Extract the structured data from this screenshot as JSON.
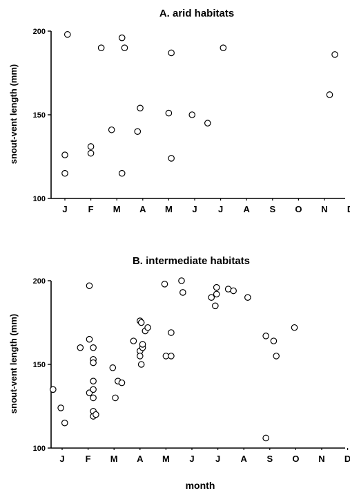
{
  "xlabel": "month",
  "chart_data": [
    {
      "type": "scatter",
      "title": "A.   arid habitats",
      "ylabel": "snout-vent length (mm)",
      "xlabel": "",
      "month_labels": [
        "J",
        "F",
        "M",
        "A",
        "M",
        "J",
        "J",
        "A",
        "S",
        "O",
        "N",
        "D"
      ],
      "ylim": [
        100,
        200
      ],
      "yticks": [
        100,
        150,
        200
      ],
      "grid": false,
      "x_units": "month index (0 = J tick, 11 = D tick)",
      "points": [
        {
          "x": 0.1,
          "y": 198
        },
        {
          "x": 0.0,
          "y": 126
        },
        {
          "x": 0.0,
          "y": 115
        },
        {
          "x": 1.0,
          "y": 131
        },
        {
          "x": 1.0,
          "y": 127
        },
        {
          "x": 1.4,
          "y": 190
        },
        {
          "x": 1.8,
          "y": 141
        },
        {
          "x": 2.2,
          "y": 196
        },
        {
          "x": 2.3,
          "y": 190
        },
        {
          "x": 2.2,
          "y": 115
        },
        {
          "x": 2.8,
          "y": 140
        },
        {
          "x": 2.9,
          "y": 154
        },
        {
          "x": 4.0,
          "y": 151
        },
        {
          "x": 4.1,
          "y": 187
        },
        {
          "x": 4.1,
          "y": 124
        },
        {
          "x": 4.9,
          "y": 150
        },
        {
          "x": 5.5,
          "y": 145
        },
        {
          "x": 6.1,
          "y": 190
        },
        {
          "x": 10.2,
          "y": 162
        },
        {
          "x": 10.4,
          "y": 186
        }
      ]
    },
    {
      "type": "scatter",
      "title": "B.   intermediate habitats",
      "ylabel": "snout-vent length (mm)",
      "xlabel": "month",
      "month_labels": [
        "J",
        "F",
        "M",
        "A",
        "M",
        "J",
        "J",
        "A",
        "S",
        "O",
        "N",
        "D"
      ],
      "ylim": [
        100,
        200
      ],
      "yticks": [
        100,
        150,
        200
      ],
      "grid": false,
      "x_units": "month index (0 = J tick, 11 = D tick)",
      "points": [
        {
          "x": -0.35,
          "y": 135
        },
        {
          "x": -0.05,
          "y": 124
        },
        {
          "x": 0.1,
          "y": 115
        },
        {
          "x": 0.7,
          "y": 160
        },
        {
          "x": 1.05,
          "y": 197
        },
        {
          "x": 1.05,
          "y": 165
        },
        {
          "x": 1.05,
          "y": 133
        },
        {
          "x": 1.2,
          "y": 160
        },
        {
          "x": 1.2,
          "y": 153
        },
        {
          "x": 1.2,
          "y": 151
        },
        {
          "x": 1.2,
          "y": 140
        },
        {
          "x": 1.2,
          "y": 135
        },
        {
          "x": 1.2,
          "y": 130
        },
        {
          "x": 1.2,
          "y": 122
        },
        {
          "x": 1.2,
          "y": 119
        },
        {
          "x": 1.3,
          "y": 120
        },
        {
          "x": 1.95,
          "y": 148
        },
        {
          "x": 2.05,
          "y": 130
        },
        {
          "x": 2.15,
          "y": 140
        },
        {
          "x": 2.3,
          "y": 139
        },
        {
          "x": 2.75,
          "y": 164
        },
        {
          "x": 3.0,
          "y": 176
        },
        {
          "x": 3.05,
          "y": 175
        },
        {
          "x": 3.2,
          "y": 170
        },
        {
          "x": 3.3,
          "y": 172
        },
        {
          "x": 3.0,
          "y": 158
        },
        {
          "x": 3.0,
          "y": 155
        },
        {
          "x": 3.1,
          "y": 160
        },
        {
          "x": 3.1,
          "y": 162
        },
        {
          "x": 3.05,
          "y": 150
        },
        {
          "x": 3.95,
          "y": 198
        },
        {
          "x": 4.0,
          "y": 155
        },
        {
          "x": 4.2,
          "y": 155
        },
        {
          "x": 4.2,
          "y": 169
        },
        {
          "x": 4.6,
          "y": 200
        },
        {
          "x": 4.65,
          "y": 193
        },
        {
          "x": 5.75,
          "y": 190
        },
        {
          "x": 5.9,
          "y": 185
        },
        {
          "x": 5.95,
          "y": 192
        },
        {
          "x": 5.95,
          "y": 196
        },
        {
          "x": 6.4,
          "y": 195
        },
        {
          "x": 6.6,
          "y": 194
        },
        {
          "x": 7.15,
          "y": 190
        },
        {
          "x": 7.85,
          "y": 167
        },
        {
          "x": 8.15,
          "y": 164
        },
        {
          "x": 8.25,
          "y": 155
        },
        {
          "x": 7.85,
          "y": 106
        },
        {
          "x": 8.95,
          "y": 172
        }
      ]
    }
  ]
}
